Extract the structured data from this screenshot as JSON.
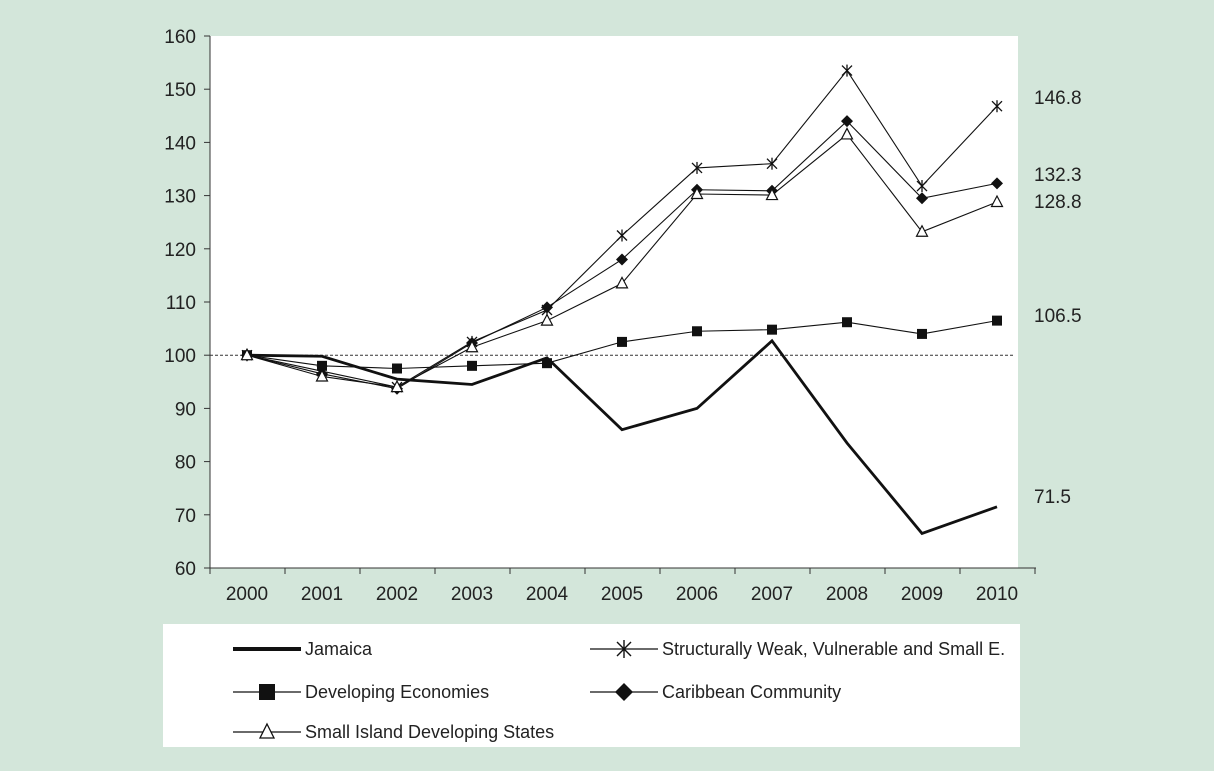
{
  "chart_data": {
    "type": "line",
    "categories": [
      "2000",
      "2001",
      "2002",
      "2003",
      "2004",
      "2005",
      "2006",
      "2007",
      "2008",
      "2009",
      "2010"
    ],
    "ylim": [
      60,
      160
    ],
    "yticks": [
      "60",
      "70",
      "80",
      "90",
      "100",
      "110",
      "120",
      "130",
      "140",
      "150",
      "160"
    ],
    "reference_line": 100,
    "series": [
      {
        "name": "Jamaica",
        "marker": "none",
        "values": [
          100,
          99.8,
          95.5,
          94.5,
          99.5,
          86,
          90,
          102.7,
          83.5,
          66.5,
          71.5
        ]
      },
      {
        "name": "Structurally Weak, Vulnerable and Small E.",
        "marker": "asterisk",
        "values": [
          100,
          97,
          94,
          102.5,
          108.5,
          122.5,
          135.2,
          136,
          153.5,
          131.8,
          146.8
        ]
      },
      {
        "name": "Developing Economies",
        "marker": "square",
        "values": [
          100,
          98,
          97.5,
          98,
          98.5,
          102.5,
          104.5,
          104.8,
          106.2,
          104,
          106.5
        ]
      },
      {
        "name": "Caribbean Community",
        "marker": "diamond",
        "values": [
          100,
          96.5,
          93.7,
          102.3,
          109,
          118,
          131.1,
          130.9,
          144,
          129.5,
          132.3
        ]
      },
      {
        "name": "Small Island Developing States",
        "marker": "triangle",
        "values": [
          100,
          96,
          94,
          101.5,
          106.5,
          113.5,
          130.3,
          130.1,
          141.5,
          123.2,
          128.8
        ]
      }
    ],
    "end_labels": [
      "146.8",
      "132.3",
      "128.8",
      "106.5",
      "71.5"
    ],
    "legend_position": "bottom"
  }
}
